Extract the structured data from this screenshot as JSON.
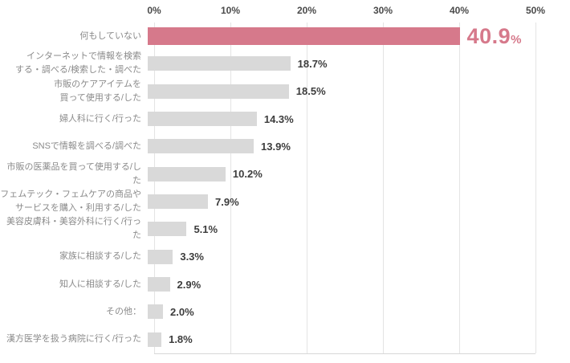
{
  "chart_data": {
    "type": "bar",
    "orientation": "horizontal",
    "title": "",
    "xlabel": "",
    "ylabel": "",
    "xlim": [
      0,
      50
    ],
    "x_ticks": [
      "0%",
      "10%",
      "20%",
      "30%",
      "40%",
      "50%"
    ],
    "grid": true,
    "legend": false,
    "tick_position": "top",
    "highlight_index": 0,
    "categories": [
      "何もしていない",
      "インターネットで情報を検索\nする・調べる/検索した・調べた",
      "市販のケアアイテムを\n買って使用する/した",
      "婦人科に行く/行った",
      "SNSで情報を調べる/調べた",
      "市販の医薬品を買って使用する/した",
      "フェムテック・フェムケアの商品や\nサービスを購入・利用する/した",
      "美容皮膚科・美容外科に行く/行った",
      "家族に相談する/した",
      "知人に相談する/した",
      "その他：",
      "漢方医学を扱う病院に行く/行った"
    ],
    "values": [
      40.9,
      18.7,
      18.5,
      14.3,
      13.9,
      10.2,
      7.9,
      5.1,
      3.3,
      2.9,
      2.0,
      1.8
    ],
    "value_labels": [
      "40.9%",
      "18.7%",
      "18.5%",
      "14.3%",
      "13.9%",
      "10.2%",
      "7.9%",
      "5.1%",
      "3.3%",
      "2.9%",
      "2.0%",
      "1.8%"
    ],
    "colors": {
      "highlight_bar": "#d6798b",
      "bar": "#d9d9d9",
      "highlight_value_text": "#d6798b",
      "value_text": "#3d3d3d",
      "category_text": "#8a8a8a",
      "tick_text": "#4a4a4a",
      "gridline": "#e4e4e4",
      "axis_line": "#d8d8d8",
      "background": "#ffffff"
    }
  }
}
